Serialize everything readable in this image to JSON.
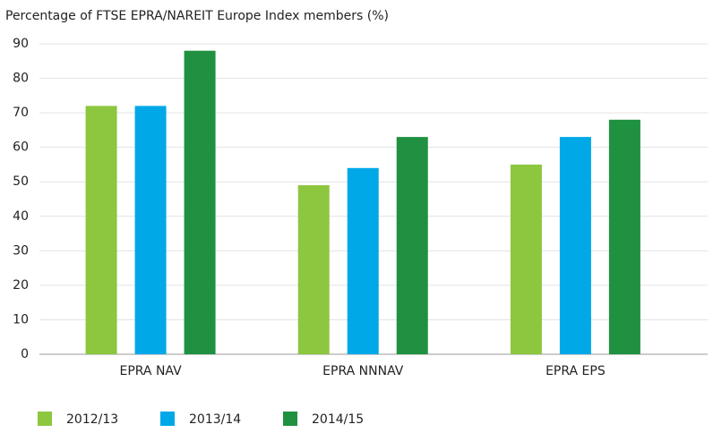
{
  "chart_data": {
    "type": "bar",
    "title": "Percentage of FTSE EPRA/NAREIT Europe Index members (%)",
    "categories": [
      "EPRA NAV",
      "EPRA NNNAV",
      "EPRA EPS"
    ],
    "series": [
      {
        "name": "2012/13",
        "color": "#8dc63f",
        "values": [
          72,
          49,
          55
        ]
      },
      {
        "name": "2013/14",
        "color": "#00a8e8",
        "values": [
          72,
          54,
          63
        ]
      },
      {
        "name": "2014/15",
        "color": "#1f9140",
        "values": [
          88,
          63,
          68
        ]
      }
    ],
    "ylim": [
      0,
      90
    ],
    "yticks": [
      0,
      10,
      20,
      30,
      40,
      50,
      60,
      70,
      80,
      90
    ],
    "grid": true,
    "legend": "bottom"
  }
}
